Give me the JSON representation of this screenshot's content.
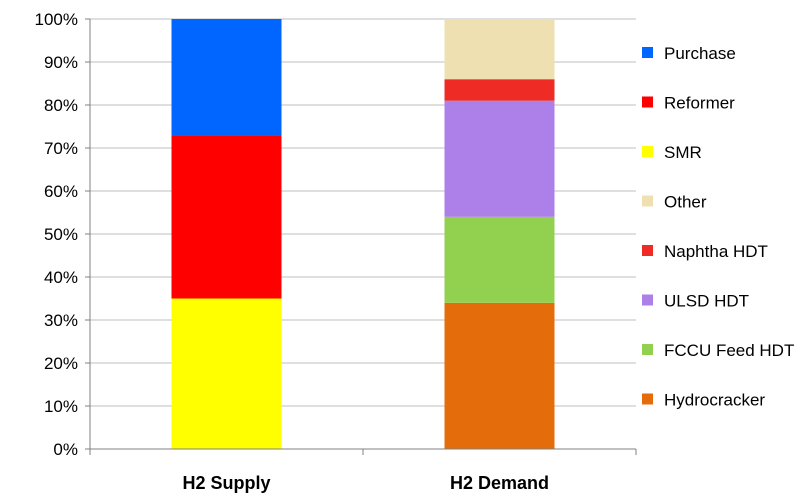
{
  "chart_data": {
    "type": "bar",
    "stacked": true,
    "percent": true,
    "categories": [
      "H2 Supply",
      "H2 Demand"
    ],
    "ylim": [
      0,
      100
    ],
    "yticks": [
      "0%",
      "10%",
      "20%",
      "30%",
      "40%",
      "50%",
      "60%",
      "70%",
      "80%",
      "90%",
      "100%"
    ],
    "grid": true,
    "legend_position": "right",
    "series": [
      {
        "name": "Hydrocracker",
        "color": "#E46C0A",
        "values": [
          0,
          34
        ]
      },
      {
        "name": "FCCU Feed HDT",
        "color": "#92D050",
        "values": [
          0,
          20
        ]
      },
      {
        "name": "ULSD HDT",
        "color": "#AD7FE8",
        "values": [
          0,
          27
        ]
      },
      {
        "name": "Naphtha HDT",
        "color": "#EE2B24",
        "values": [
          0,
          5
        ]
      },
      {
        "name": "Other",
        "color": "#EEE0B0",
        "values": [
          0,
          14
        ]
      },
      {
        "name": "SMR",
        "color": "#FFFF00",
        "values": [
          35,
          0
        ]
      },
      {
        "name": "Reformer",
        "color": "#FF0000",
        "values": [
          38,
          0
        ]
      },
      {
        "name": "Purchase",
        "color": "#0066FF",
        "values": [
          27,
          0
        ]
      }
    ],
    "legend_order": [
      "Purchase",
      "Reformer",
      "SMR",
      "Other",
      "Naphtha HDT",
      "ULSD HDT",
      "FCCU Feed HDT",
      "Hydrocracker"
    ]
  }
}
